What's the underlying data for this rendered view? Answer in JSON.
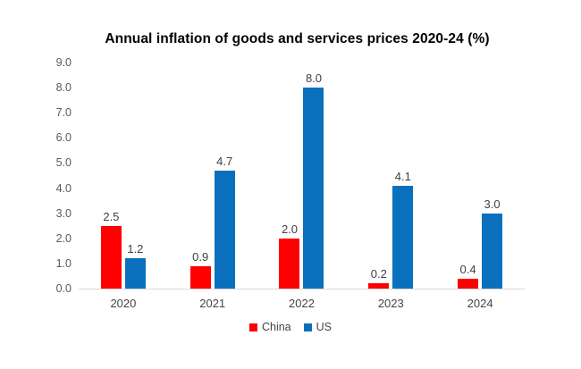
{
  "chart_data": {
    "type": "bar",
    "title": "Annual inflation of goods and services prices 2020-24 (%)",
    "categories": [
      "2020",
      "2021",
      "2022",
      "2023",
      "2024"
    ],
    "series": [
      {
        "name": "China",
        "color": "#ff0000",
        "values": [
          2.5,
          0.9,
          2.0,
          0.2,
          0.4
        ],
        "labels": [
          "2.5",
          "0.9",
          "2.0",
          "0.2",
          "0.4"
        ]
      },
      {
        "name": "US",
        "color": "#0a70be",
        "values": [
          1.2,
          4.7,
          8.0,
          4.1,
          3.0
        ],
        "labels": [
          "1.2",
          "4.7",
          "8.0",
          "4.1",
          "3.0"
        ]
      }
    ],
    "xlabel": "",
    "ylabel": "",
    "ylim": [
      0,
      9
    ],
    "y_ticks": [
      "9.0",
      "8.0",
      "7.0",
      "6.0",
      "5.0",
      "4.0",
      "3.0",
      "2.0",
      "1.0",
      "0.0"
    ],
    "grid": false,
    "data_labels": true,
    "legend_position": "bottom",
    "axis_line_color": "#d9d9d9",
    "tick_label_color": "#595959",
    "data_label_color": "#3f3f3f"
  }
}
